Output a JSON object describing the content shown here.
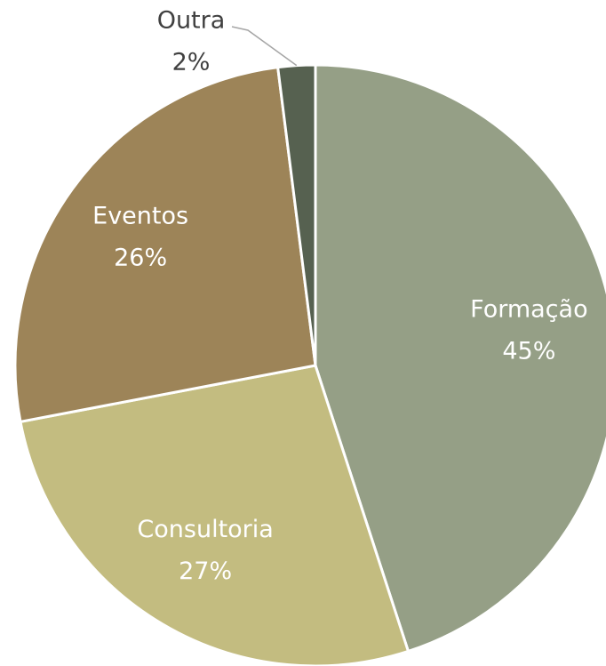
{
  "chart_data": {
    "type": "pie",
    "categories": [
      "Formação",
      "Consultoria",
      "Eventos",
      "Outra"
    ],
    "values": [
      45,
      27,
      26,
      2
    ],
    "value_labels": [
      "45%",
      "27%",
      "26%",
      "2%"
    ],
    "colors": [
      "#959f86",
      "#c3bc80",
      "#9d8458",
      "#566150"
    ]
  }
}
